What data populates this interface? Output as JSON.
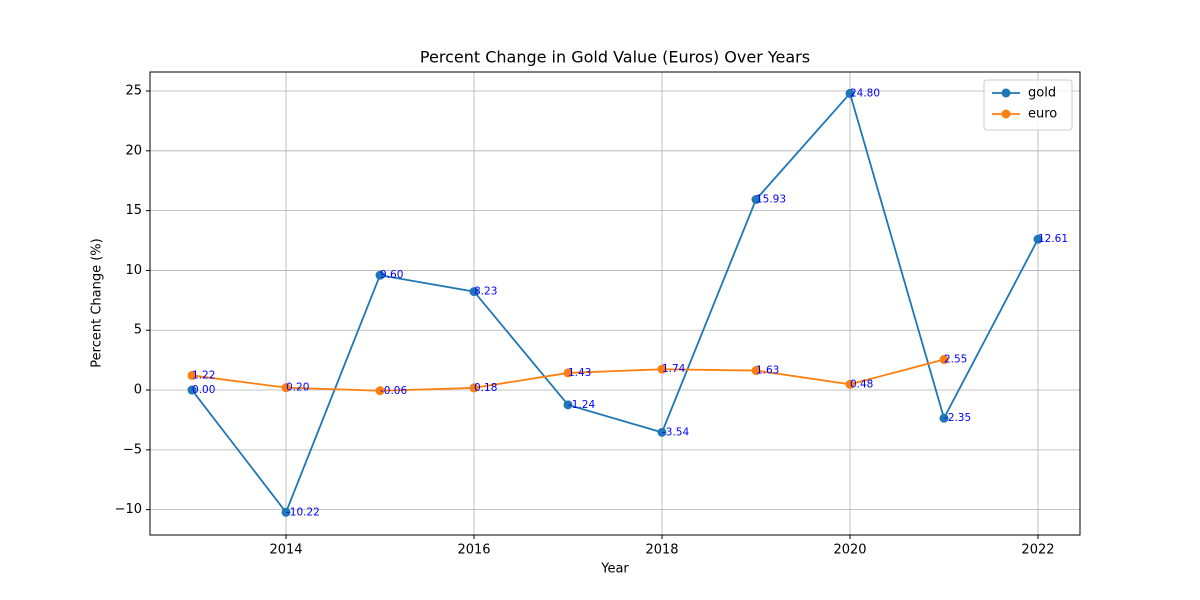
{
  "chart_data": {
    "type": "line",
    "title": "Percent Change in Gold Value (Euros) Over Years",
    "xlabel": "Year",
    "ylabel": "Percent Change (%)",
    "x": [
      2013,
      2014,
      2015,
      2016,
      2017,
      2018,
      2019,
      2020,
      2021,
      2022
    ],
    "series": [
      {
        "name": "gold",
        "color": "#1f77b4",
        "values": [
          0.0,
          -10.22,
          9.6,
          8.23,
          -1.24,
          -3.54,
          15.93,
          24.8,
          -2.35,
          12.61
        ],
        "value_labels": [
          "0.00",
          "-10.22",
          "9.60",
          "8.23",
          "-1.24",
          "-3.54",
          "15.93",
          "24.80",
          "-2.35",
          "12.61"
        ]
      },
      {
        "name": "euro",
        "color": "#ff7f0e",
        "values": [
          1.22,
          0.2,
          -0.06,
          0.18,
          1.43,
          1.74,
          1.63,
          0.48,
          2.55,
          null
        ],
        "value_labels": [
          "1.22",
          "0.20",
          "-0.06",
          "0.18",
          "1.43",
          "1.74",
          "1.63",
          "0.48",
          "2.55",
          null
        ]
      }
    ],
    "xlim": [
      2012.553,
      2022.447
    ],
    "xticks": [
      2014,
      2016,
      2018,
      2020,
      2022
    ],
    "ylim": [
      -12.12,
      26.59
    ],
    "yticks": [
      {
        "value": -10,
        "label": "−10"
      },
      {
        "value": -5,
        "label": "−5"
      },
      0,
      5,
      10,
      15,
      20,
      25
    ],
    "grid": true,
    "legend": "upper right",
    "value_label_color": "#0000ff"
  }
}
